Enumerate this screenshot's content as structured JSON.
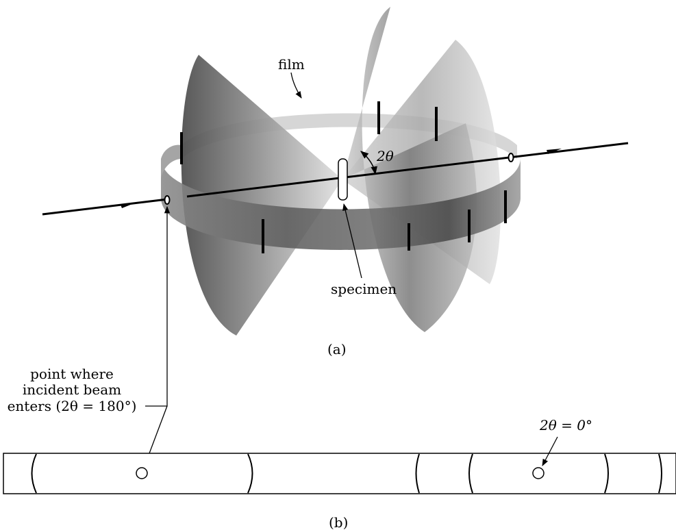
{
  "labels": {
    "film": "film",
    "two_theta": "2θ",
    "specimen": "specimen",
    "panel_a": "(a)",
    "entry_line1": "point where",
    "entry_line2": "incident beam",
    "entry_line3": "enters (2θ = 180°)",
    "zero_angle": "2θ = 0°",
    "panel_b": "(b)"
  },
  "colors": {
    "ink": "#000000",
    "cone_dark": "#3a3a3a",
    "cone_light": "#d8d8d8",
    "film_band": "#9a9a9a"
  }
}
